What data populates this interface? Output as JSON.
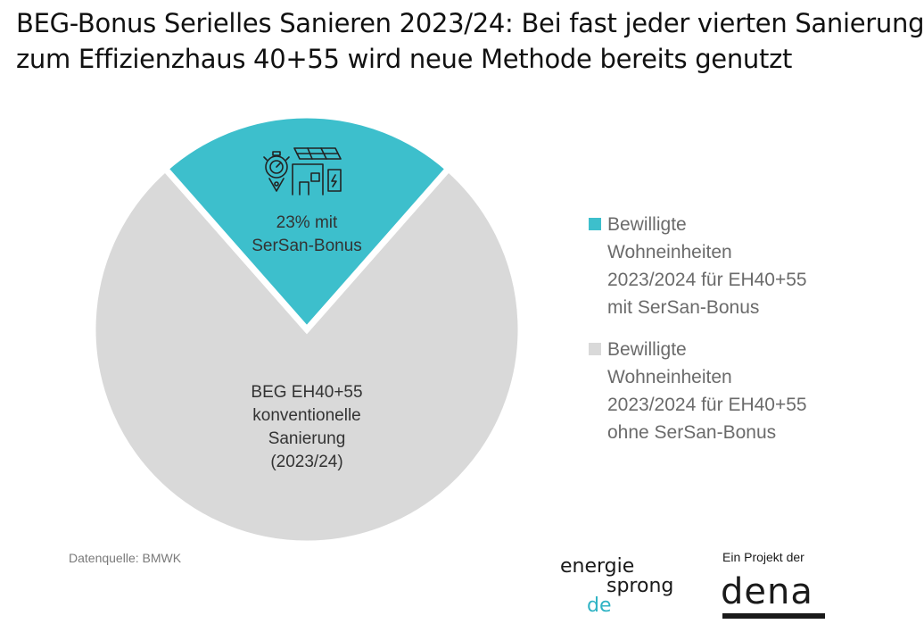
{
  "title": {
    "line1": "BEG-Bonus Serielles Sanieren 2023/24: Bei fast jeder vierten Sanierung",
    "line2": "zum Effizienzhaus 40+55 wird neue Methode bereits genutzt"
  },
  "chart_data": {
    "type": "pie",
    "slices": [
      {
        "value": 23,
        "label_lines": [
          "23% mit",
          "SerSan-Bonus"
        ],
        "legend": "Bewilligte\nWohneinheiten\n2023/2024 für EH40+55\nmit SerSan-Bonus",
        "color": "#3dbfcc",
        "icon": "serial-renovation-icon"
      },
      {
        "value": 77,
        "label_lines": [
          "BEG EH40+55",
          "konventionelle",
          "Sanierung",
          "(2023/24)"
        ],
        "legend": "Bewilligte\nWohneinheiten\n2023/2024 für EH40+55\nohne SerSan-Bonus",
        "color": "#d9d9d9"
      }
    ],
    "legend_position": "right"
  },
  "source": "Datenquelle: BMWK",
  "logos": {
    "energiesprong": [
      "energie",
      "sprong",
      "de"
    ],
    "dena_caption": "Ein Projekt der",
    "dena": "dena"
  }
}
